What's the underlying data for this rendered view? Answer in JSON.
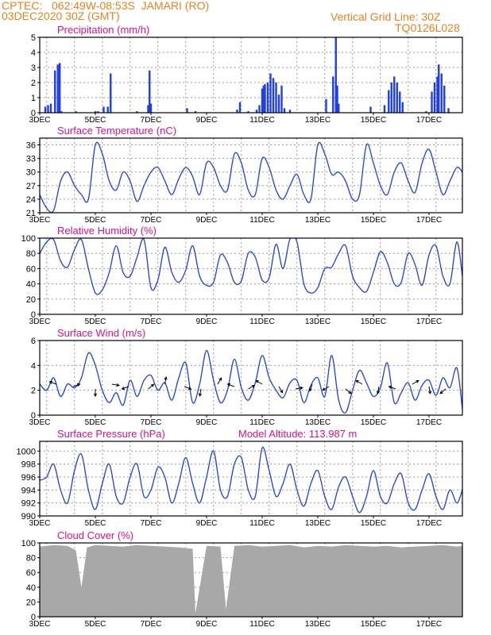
{
  "header": {
    "line1_left": "CPTEC:   062:49W-08:53S  JAMARI (RO)",
    "line2_left": "03DEC2020 30Z (GMT)",
    "line1_right": "Vertical Grid Line: 30Z",
    "line2_right": "TQ0126L028"
  },
  "colors": {
    "header": "#e8821e",
    "title": "#e0108c",
    "series": "#1f3ee6",
    "cloud": "#a8a8a8",
    "grid": "#9a9a9a"
  },
  "x_ticks": [
    "3DEC",
    "5DEC",
    "7DEC",
    "9DEC",
    "11DEC",
    "13DEC",
    "15DEC",
    "17DEC"
  ],
  "panels": [
    {
      "id": "precip",
      "title": "Precipitation (mm/h)",
      "y_ticks": [
        "0",
        "1",
        "2",
        "3",
        "4",
        "5"
      ],
      "extra": ""
    },
    {
      "id": "temp",
      "title": "Surface Temperature (nC)",
      "y_ticks": [
        "21",
        "24",
        "27",
        "30",
        "33",
        "36"
      ],
      "extra": ""
    },
    {
      "id": "rh",
      "title": "Relative Humidity (%)",
      "y_ticks": [
        "0",
        "20",
        "40",
        "60",
        "80",
        "100"
      ],
      "extra": ""
    },
    {
      "id": "wind",
      "title": "Surface Wind (m/s)",
      "y_ticks": [
        "0",
        "2",
        "4",
        "6"
      ],
      "extra": ""
    },
    {
      "id": "press",
      "title": "Surface Pressure (hPa)",
      "y_ticks": [
        "990",
        "992",
        "994",
        "996",
        "998",
        "1000"
      ],
      "extra": "Model Altitude: 113.987 m"
    },
    {
      "id": "cloud",
      "title": "Cloud Cover (%)",
      "y_ticks": [
        "0",
        "20",
        "40",
        "60",
        "80",
        "100"
      ],
      "extra": ""
    }
  ],
  "chart_data": [
    {
      "type": "bar",
      "title": "Precipitation (mm/h)",
      "ylim": [
        0,
        5
      ],
      "x_range_days": [
        3,
        18.2
      ],
      "x": [
        3.2,
        3.3,
        3.4,
        3.55,
        3.65,
        3.72,
        3.78,
        4.3,
        5.0,
        5.1,
        5.3,
        5.45,
        5.55,
        6.5,
        6.9,
        6.95,
        7.0,
        8.3,
        8.6,
        10.1,
        10.2,
        10.5,
        10.8,
        10.9,
        11.0,
        11.05,
        11.1,
        11.2,
        11.3,
        11.4,
        11.5,
        11.6,
        11.7,
        11.8,
        12.0,
        13.3,
        13.55,
        13.65,
        13.7,
        13.75,
        14.9,
        15.4,
        15.55,
        15.65,
        15.75,
        15.85,
        15.95,
        16.05,
        16.9,
        17.1,
        17.2,
        17.3,
        17.35,
        17.45,
        17.55,
        17.7
      ],
      "values": [
        0.4,
        0.5,
        0.6,
        2.8,
        3.2,
        3.3,
        0.1,
        0.1,
        0.1,
        0.1,
        0.4,
        0.4,
        2.6,
        0.1,
        0.5,
        2.8,
        0.6,
        0.3,
        0.1,
        0.2,
        0.7,
        0.1,
        0.2,
        0.5,
        1.6,
        1.8,
        1.9,
        2.0,
        2.6,
        2.3,
        2.0,
        1.2,
        1.8,
        0.3,
        0.2,
        0.9,
        2.4,
        5.0,
        1.8,
        0.6,
        0.4,
        0.5,
        1.5,
        2.0,
        2.4,
        2.0,
        1.4,
        0.7,
        0.1,
        1.4,
        2.0,
        2.4,
        3.2,
        2.6,
        1.8,
        0.3
      ]
    },
    {
      "type": "line",
      "title": "Surface Temperature (nC)",
      "ylim": [
        21,
        37.5
      ],
      "x_range_days": [
        3,
        18.2
      ],
      "x": [
        3.0,
        3.25,
        3.5,
        3.75,
        4.0,
        4.25,
        4.5,
        4.75,
        5.0,
        5.25,
        5.5,
        5.75,
        6.0,
        6.25,
        6.5,
        6.75,
        7.0,
        7.25,
        7.5,
        7.75,
        8.0,
        8.25,
        8.5,
        8.75,
        9.0,
        9.25,
        9.5,
        9.75,
        10.0,
        10.25,
        10.5,
        10.75,
        11.0,
        11.25,
        11.5,
        11.75,
        12.0,
        12.25,
        12.5,
        12.75,
        13.0,
        13.25,
        13.5,
        13.75,
        14.0,
        14.25,
        14.5,
        14.75,
        15.0,
        15.25,
        15.5,
        15.75,
        16.0,
        16.25,
        16.5,
        16.75,
        17.0,
        17.25,
        17.5,
        17.75,
        18.0,
        18.2
      ],
      "values": [
        25,
        22,
        21.5,
        28,
        30,
        27,
        25,
        24,
        36,
        34,
        28,
        26,
        30,
        28,
        23.5,
        27,
        30,
        31,
        28,
        25,
        28.5,
        31,
        29,
        25,
        32,
        31,
        27,
        26,
        34,
        32,
        26,
        25,
        33,
        31,
        26,
        24,
        27,
        29.5,
        25,
        24,
        36,
        34,
        29.5,
        30,
        28,
        24,
        25,
        36,
        32,
        27,
        25,
        30,
        32,
        28,
        25.5,
        32,
        35,
        30,
        25,
        28,
        31,
        30
      ]
    },
    {
      "type": "line",
      "title": "Relative Humidity (%)",
      "ylim": [
        0,
        100
      ],
      "x_range_days": [
        3,
        18.2
      ],
      "x": [
        3.0,
        3.25,
        3.5,
        3.75,
        4.0,
        4.25,
        4.5,
        4.75,
        5.0,
        5.25,
        5.5,
        5.75,
        6.0,
        6.25,
        6.5,
        6.75,
        7.0,
        7.25,
        7.5,
        7.75,
        8.0,
        8.25,
        8.5,
        8.75,
        9.0,
        9.25,
        9.5,
        9.75,
        10.0,
        10.25,
        10.5,
        10.75,
        11.0,
        11.25,
        11.5,
        11.75,
        12.0,
        12.25,
        12.5,
        12.75,
        13.0,
        13.25,
        13.5,
        13.75,
        14.0,
        14.25,
        14.5,
        14.75,
        15.0,
        15.25,
        15.5,
        15.75,
        16.0,
        16.25,
        16.5,
        16.75,
        17.0,
        17.25,
        17.5,
        17.75,
        18.0,
        18.2
      ],
      "values": [
        80,
        95,
        98,
        70,
        62,
        85,
        98,
        60,
        28,
        32,
        55,
        90,
        55,
        50,
        75,
        98,
        35,
        45,
        88,
        55,
        42,
        58,
        90,
        50,
        38,
        42,
        78,
        68,
        42,
        44,
        80,
        75,
        45,
        48,
        92,
        60,
        99,
        95,
        40,
        28,
        35,
        60,
        62,
        80,
        90,
        50,
        35,
        30,
        55,
        82,
        68,
        40,
        42,
        80,
        65,
        38,
        78,
        90,
        50,
        40,
        95,
        50
      ]
    },
    {
      "type": "line",
      "title": "Surface Wind (m/s)",
      "ylim": [
        0,
        6
      ],
      "x_range_days": [
        3,
        18.2
      ],
      "x": [
        3.0,
        3.25,
        3.5,
        3.75,
        4.0,
        4.25,
        4.5,
        4.75,
        5.0,
        5.25,
        5.5,
        5.75,
        6.0,
        6.25,
        6.5,
        6.75,
        7.0,
        7.25,
        7.5,
        7.75,
        8.0,
        8.25,
        8.5,
        8.75,
        9.0,
        9.25,
        9.5,
        9.75,
        10.0,
        10.25,
        10.5,
        10.75,
        11.0,
        11.25,
        11.5,
        11.75,
        12.0,
        12.25,
        12.5,
        12.75,
        13.0,
        13.25,
        13.5,
        13.75,
        14.0,
        14.25,
        14.5,
        14.75,
        15.0,
        15.25,
        15.5,
        15.75,
        16.0,
        16.25,
        16.5,
        16.75,
        17.0,
        17.25,
        17.5,
        17.75,
        18.0,
        18.2
      ],
      "values": [
        2.5,
        2.0,
        3.0,
        1.5,
        2.5,
        2.2,
        3.0,
        5.0,
        4.0,
        2.0,
        1.0,
        1.8,
        0.8,
        2.8,
        1.5,
        2.8,
        3.2,
        2.0,
        2.6,
        1.2,
        3.0,
        4.2,
        1.0,
        2.5,
        5.2,
        2.8,
        1.0,
        2.0,
        4.5,
        2.2,
        1.2,
        2.6,
        4.8,
        3.0,
        2.0,
        1.4,
        2.6,
        2.8,
        1.0,
        2.4,
        3.0,
        1.5,
        4.8,
        1.2,
        0.2,
        2.0,
        3.6,
        2.6,
        1.5,
        2.2,
        4.2,
        1.0,
        1.8,
        2.6,
        1.2,
        2.4,
        2.8,
        1.6,
        3.0,
        2.2,
        3.8,
        0.5
      ]
    },
    {
      "type": "line",
      "title": "Surface Pressure (hPa)",
      "ylim": [
        990,
        1001.5
      ],
      "x_range_days": [
        3,
        18.2
      ],
      "x": [
        3.0,
        3.25,
        3.5,
        3.75,
        4.0,
        4.25,
        4.5,
        4.75,
        5.0,
        5.25,
        5.5,
        5.75,
        6.0,
        6.25,
        6.5,
        6.75,
        7.0,
        7.25,
        7.5,
        7.75,
        8.0,
        8.25,
        8.5,
        8.75,
        9.0,
        9.25,
        9.5,
        9.75,
        10.0,
        10.25,
        10.5,
        10.75,
        11.0,
        11.25,
        11.5,
        11.75,
        12.0,
        12.25,
        12.5,
        12.75,
        13.0,
        13.25,
        13.5,
        13.75,
        14.0,
        14.25,
        14.5,
        14.75,
        15.0,
        15.25,
        15.5,
        15.75,
        16.0,
        16.25,
        16.5,
        16.75,
        17.0,
        17.25,
        17.5,
        17.75,
        18.0,
        18.2
      ],
      "values": [
        995.5,
        996,
        998,
        994,
        992,
        997,
        999.5,
        994,
        991,
        995,
        998,
        993,
        992,
        996,
        998,
        993,
        994,
        997.5,
        996,
        992,
        995,
        999,
        995,
        992,
        996,
        1000,
        994,
        993,
        998,
        999,
        994,
        993,
        1000.5,
        997,
        993,
        995,
        998,
        994,
        991.5,
        995,
        997,
        993,
        991,
        994.5,
        996,
        993,
        990.5,
        993,
        997,
        993,
        992,
        995,
        996.5,
        992,
        991,
        994,
        996.5,
        993,
        991,
        994,
        992,
        994
      ]
    },
    {
      "type": "area",
      "title": "Cloud Cover (%)",
      "ylim": [
        0,
        100
      ],
      "x_range_days": [
        3,
        18.2
      ],
      "x": [
        3.0,
        3.5,
        4.0,
        4.3,
        4.5,
        4.7,
        5.0,
        5.5,
        6.0,
        6.5,
        7.0,
        7.5,
        8.0,
        8.5,
        8.6,
        9.0,
        9.5,
        9.7,
        10.0,
        10.5,
        11.0,
        11.5,
        12.0,
        12.5,
        13.0,
        13.5,
        14.0,
        14.5,
        15.0,
        15.5,
        16.0,
        16.5,
        17.0,
        17.5,
        18.0,
        18.2
      ],
      "values": [
        95,
        97,
        96,
        90,
        40,
        94,
        97,
        96,
        95,
        97,
        96,
        95,
        94,
        92,
        5,
        96,
        95,
        10,
        96,
        97,
        95,
        96,
        97,
        94,
        96,
        95,
        97,
        96,
        95,
        96,
        94,
        95,
        96,
        97,
        95,
        96
      ]
    }
  ]
}
